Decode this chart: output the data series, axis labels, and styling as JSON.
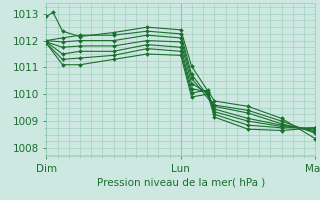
{
  "title": "Pression niveau de la mer( hPa )",
  "ylabel_ticks": [
    1008,
    1009,
    1010,
    1011,
    1012,
    1013
  ],
  "xlim": [
    0,
    2.0
  ],
  "ylim": [
    1007.7,
    1013.4
  ],
  "xtick_labels": [
    "Dim",
    "Lun",
    "Mar"
  ],
  "xtick_positions": [
    0.0,
    1.0,
    2.0
  ],
  "background_color": "#cce8e0",
  "grid_color": "#99ccbb",
  "line_color": "#1a6e2e",
  "series": [
    [
      0.0,
      1012.9,
      0.05,
      1013.05,
      0.12,
      1012.35,
      0.25,
      1012.15,
      0.5,
      1012.3,
      0.75,
      1012.5,
      1.0,
      1012.4,
      1.08,
      1011.05,
      1.25,
      1009.75,
      1.5,
      1009.55,
      1.75,
      1009.1,
      2.0,
      1008.35
    ],
    [
      0.0,
      1012.0,
      0.12,
      1012.1,
      0.25,
      1012.2,
      0.5,
      1012.2,
      0.75,
      1012.35,
      1.0,
      1012.25,
      1.08,
      1010.75,
      1.25,
      1009.6,
      1.5,
      1009.4,
      1.75,
      1009.0,
      2.0,
      1008.55
    ],
    [
      0.0,
      1012.0,
      0.12,
      1011.95,
      0.25,
      1012.0,
      0.5,
      1012.0,
      0.75,
      1012.2,
      1.0,
      1012.1,
      1.08,
      1010.6,
      1.25,
      1009.55,
      1.5,
      1009.3,
      1.75,
      1008.9,
      2.0,
      1008.6
    ],
    [
      0.0,
      1011.95,
      0.12,
      1011.75,
      0.25,
      1011.8,
      0.5,
      1011.8,
      0.75,
      1012.0,
      1.0,
      1011.95,
      1.08,
      1010.4,
      1.2,
      1010.05,
      1.25,
      1009.45,
      1.5,
      1009.1,
      1.75,
      1008.85,
      2.0,
      1008.65
    ],
    [
      0.0,
      1011.95,
      0.12,
      1011.5,
      0.25,
      1011.6,
      0.5,
      1011.6,
      0.75,
      1011.85,
      1.0,
      1011.75,
      1.08,
      1010.2,
      1.2,
      1010.1,
      1.25,
      1009.35,
      1.5,
      1009.0,
      1.75,
      1008.8,
      2.0,
      1008.7
    ],
    [
      0.0,
      1011.9,
      0.12,
      1011.3,
      0.25,
      1011.35,
      0.5,
      1011.45,
      0.75,
      1011.7,
      1.0,
      1011.6,
      1.08,
      1010.05,
      1.2,
      1010.15,
      1.25,
      1009.25,
      1.5,
      1008.85,
      1.75,
      1008.75,
      2.0,
      1008.75
    ],
    [
      0.0,
      1011.9,
      0.12,
      1011.1,
      0.25,
      1011.1,
      0.5,
      1011.3,
      0.75,
      1011.5,
      1.0,
      1011.45,
      1.08,
      1009.9,
      1.2,
      1010.0,
      1.25,
      1009.15,
      1.5,
      1008.7,
      1.75,
      1008.65,
      2.0,
      1008.75
    ]
  ],
  "font_size": 7.5
}
